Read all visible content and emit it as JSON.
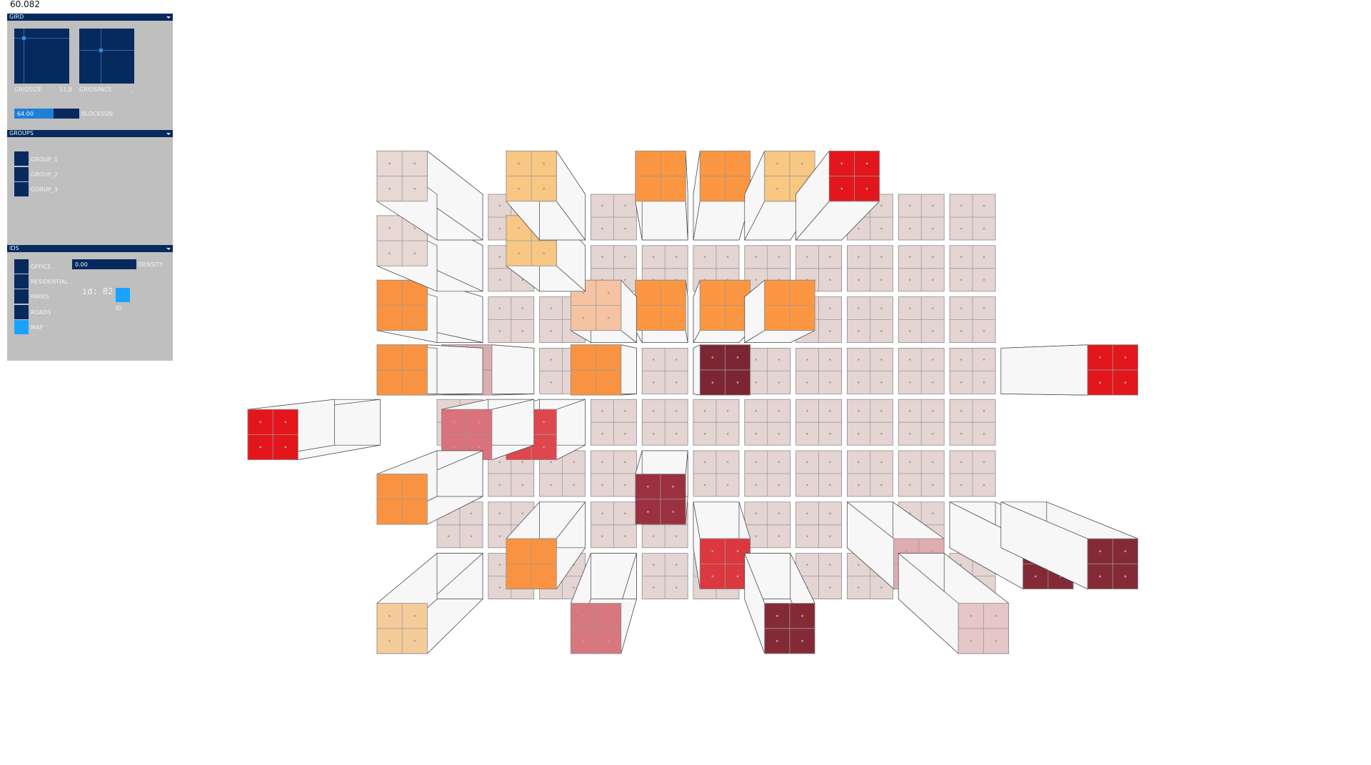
{
  "fps": "60.082",
  "gui": {
    "grid": {
      "title": "GIRD",
      "gridsize_label": "GRIDSIZE",
      "gridsize_value": "11,8",
      "gridspace_label": "GRIDSPACE",
      "gridspace_value": ",",
      "blocksize_value": "64.00",
      "blocksize_fraction": 0.6,
      "blocksize_label": "BLOCKSIZE"
    },
    "groups": {
      "title": "GROUPS",
      "items": [
        "GROUP_1",
        "GROUP_2",
        "GORUP_3"
      ]
    },
    "ids": {
      "title": "IDS",
      "toggles": [
        "OFFICE",
        "RESIDENTIAL",
        "PARKS",
        "ROADS",
        "MAP"
      ],
      "active_toggle": "MAP",
      "density_value": "0.00",
      "density_label": "DENSITY",
      "id_readout": "id: 82",
      "id_label": "ID"
    }
  },
  "colors": {
    "panel_bg": "#bfbfbf",
    "control_fg": "#062a5e",
    "control_active": "#19a3ff",
    "block_neutral": "#e4d5d2",
    "side_face": "#f7f7f7"
  },
  "scene": {
    "grid_columns": 11,
    "grid_rows": 8,
    "elevated_blocks": [
      {
        "col": 0,
        "row": 0,
        "color": "#e8d8d4"
      },
      {
        "col": 0,
        "row": 1,
        "color": "#e8d8d4"
      },
      {
        "col": 0,
        "row": 2,
        "color": "#fa9341"
      },
      {
        "col": 2,
        "row": 0,
        "color": "#f7c783"
      },
      {
        "col": 2,
        "row": 1,
        "color": "#f7c783"
      },
      {
        "col": 3,
        "row": 2,
        "color": "#f5c2a2"
      },
      {
        "col": 4,
        "row": 0,
        "color": "#fd9640"
      },
      {
        "col": 5,
        "row": 0,
        "color": "#fd9640"
      },
      {
        "col": 6,
        "row": 0,
        "color": "#f8c882"
      },
      {
        "col": 7,
        "row": 0,
        "color": "#e2161b"
      },
      {
        "col": 4,
        "row": 2,
        "color": "#fd9640"
      },
      {
        "col": 5,
        "row": 2,
        "color": "#fd9640"
      },
      {
        "col": 6,
        "row": 2,
        "color": "#fd9640"
      },
      {
        "col": 0,
        "row": 3,
        "color": "#fa9341"
      },
      {
        "col": 1,
        "row": 3,
        "color": "#dbaeb0"
      },
      {
        "col": 3,
        "row": 3,
        "color": "#fa9341"
      },
      {
        "col": 5,
        "row": 3,
        "color": "#7c2533"
      },
      {
        "col": 11,
        "row": 3,
        "color": "#e2161b"
      },
      {
        "col": -2,
        "row": 4,
        "color": "#e2161b"
      },
      {
        "col": 1,
        "row": 4,
        "color": "#d9727a"
      },
      {
        "col": 2,
        "row": 4,
        "color": "#df474f"
      },
      {
        "col": 0,
        "row": 5,
        "color": "#fa9341"
      },
      {
        "col": 4,
        "row": 5,
        "color": "#9a3040"
      },
      {
        "col": 2,
        "row": 6,
        "color": "#fa9341"
      },
      {
        "col": 8,
        "row": 6,
        "color": "#dfacaf"
      },
      {
        "col": 5,
        "row": 6,
        "color": "#db383f"
      },
      {
        "col": 10,
        "row": 6,
        "color": "#842a37"
      },
      {
        "col": 11,
        "row": 6,
        "color": "#842a37"
      },
      {
        "col": 0,
        "row": 7,
        "color": "#f4cc99"
      },
      {
        "col": 3,
        "row": 7,
        "color": "#d8777d"
      },
      {
        "col": 6,
        "row": 7,
        "color": "#842a37"
      },
      {
        "col": 9,
        "row": 7,
        "color": "#e6c6c6"
      }
    ]
  }
}
